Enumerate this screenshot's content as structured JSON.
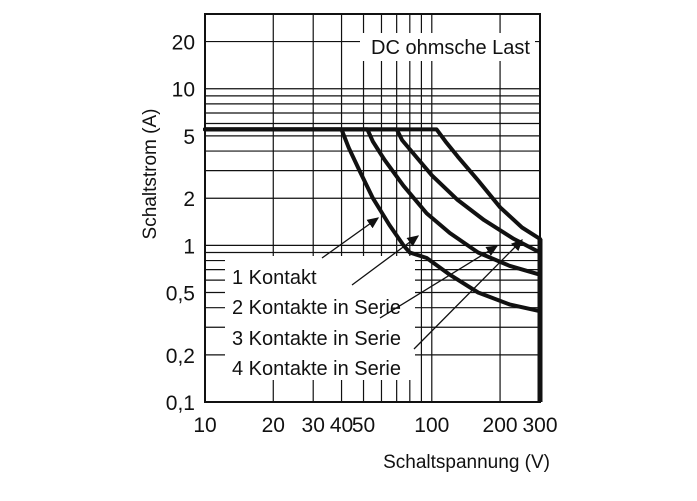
{
  "chart_data": {
    "type": "line",
    "title": "",
    "annotation": "DC ohmsche Last",
    "xlabel": "Schaltspannung (V)",
    "ylabel": "Schaltstrom (A)",
    "xscale": "log",
    "yscale": "log",
    "xlim": [
      10,
      300
    ],
    "ylim": [
      0.1,
      30
    ],
    "xticks": [
      {
        "value": 10,
        "label": "10"
      },
      {
        "value": 20,
        "label": "20"
      },
      {
        "value": 30,
        "label": "30"
      },
      {
        "value": 40,
        "label": "40"
      },
      {
        "value": 50,
        "label": "50"
      },
      {
        "value": 100,
        "label": "100"
      },
      {
        "value": 200,
        "label": "200"
      },
      {
        "value": 300,
        "label": "300"
      }
    ],
    "yticks": [
      {
        "value": 0.1,
        "label": "0,1"
      },
      {
        "value": 0.2,
        "label": "0,2"
      },
      {
        "value": 0.5,
        "label": "0,5"
      },
      {
        "value": 1,
        "label": "1"
      },
      {
        "value": 2,
        "label": "2"
      },
      {
        "value": 5,
        "label": "5"
      },
      {
        "value": 10,
        "label": "10"
      },
      {
        "value": 20,
        "label": "20"
      }
    ],
    "grid": true,
    "series": [
      {
        "name": "1 Kontakt",
        "points": [
          [
            10,
            5.5
          ],
          [
            40,
            5.5
          ],
          [
            43,
            4.2
          ],
          [
            48,
            3
          ],
          [
            55,
            2
          ],
          [
            65,
            1.35
          ],
          [
            75,
            1.0
          ],
          [
            80,
            0.9
          ],
          [
            95,
            0.83
          ],
          [
            120,
            0.65
          ],
          [
            160,
            0.5
          ],
          [
            220,
            0.42
          ],
          [
            300,
            0.38
          ]
        ]
      },
      {
        "name": "2 Kontakte in Serie",
        "points": [
          [
            10,
            5.5
          ],
          [
            52,
            5.5
          ],
          [
            55,
            4.6
          ],
          [
            62,
            3.5
          ],
          [
            75,
            2.4
          ],
          [
            95,
            1.6
          ],
          [
            120,
            1.2
          ],
          [
            160,
            0.9
          ],
          [
            220,
            0.74
          ],
          [
            300,
            0.65
          ]
        ]
      },
      {
        "name": "3 Kontakte in Serie",
        "points": [
          [
            10,
            5.5
          ],
          [
            70,
            5.5
          ],
          [
            74,
            4.7
          ],
          [
            85,
            3.7
          ],
          [
            100,
            2.8
          ],
          [
            130,
            1.95
          ],
          [
            170,
            1.45
          ],
          [
            230,
            1.1
          ],
          [
            300,
            0.9
          ]
        ]
      },
      {
        "name": "4 Kontakte in Serie",
        "points": [
          [
            10,
            5.5
          ],
          [
            105,
            5.5
          ],
          [
            115,
            4.6
          ],
          [
            130,
            3.7
          ],
          [
            160,
            2.6
          ],
          [
            200,
            1.75
          ],
          [
            250,
            1.3
          ],
          [
            300,
            1.1
          ]
        ]
      }
    ],
    "boundary_x": 300,
    "legend_placement": "bottom-left inside"
  }
}
